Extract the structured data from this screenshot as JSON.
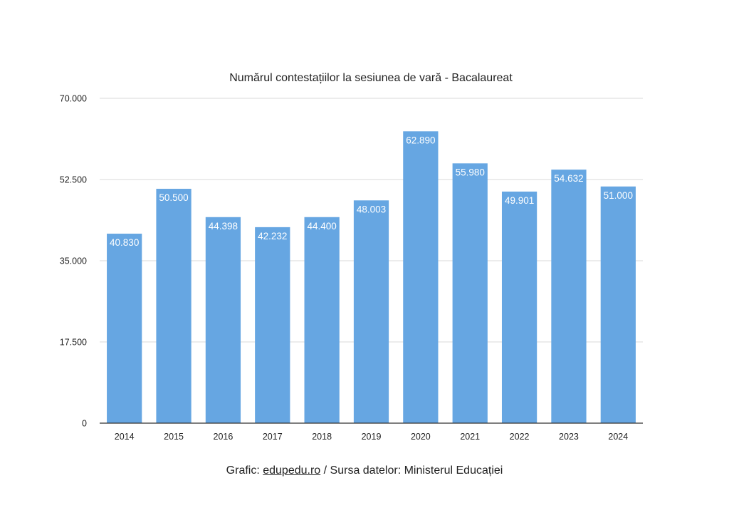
{
  "chart_data": {
    "type": "bar",
    "title": "Numărul contestațiilor la sesiunea de vară - Bacalaureat",
    "xlabel": "",
    "ylabel": "",
    "categories": [
      "2014",
      "2015",
      "2016",
      "2017",
      "2018",
      "2019",
      "2020",
      "2021",
      "2022",
      "2023",
      "2024"
    ],
    "values": [
      40830,
      50500,
      44398,
      42232,
      44400,
      48003,
      62890,
      55980,
      49901,
      54632,
      51000
    ],
    "value_labels": [
      "40.830",
      "50.500",
      "44.398",
      "42.232",
      "44.400",
      "48.003",
      "62.890",
      "55.980",
      "49.901",
      "54.632",
      "51.000"
    ],
    "ylim": [
      0,
      70000
    ],
    "y_ticks": [
      0,
      17500,
      35000,
      52500,
      70000
    ],
    "y_tick_labels": [
      "0",
      "17.500",
      "35.000",
      "52.500",
      "70.000"
    ],
    "grid": true,
    "legend": "none",
    "colors": {
      "bar": "#66a6e2",
      "grid": "#d9d9d9",
      "axis": "#333333"
    }
  },
  "footer": {
    "prefix": "Grafic: ",
    "link_text": "edupedu.ro",
    "suffix": " / Sursa datelor: Ministerul Educației"
  }
}
